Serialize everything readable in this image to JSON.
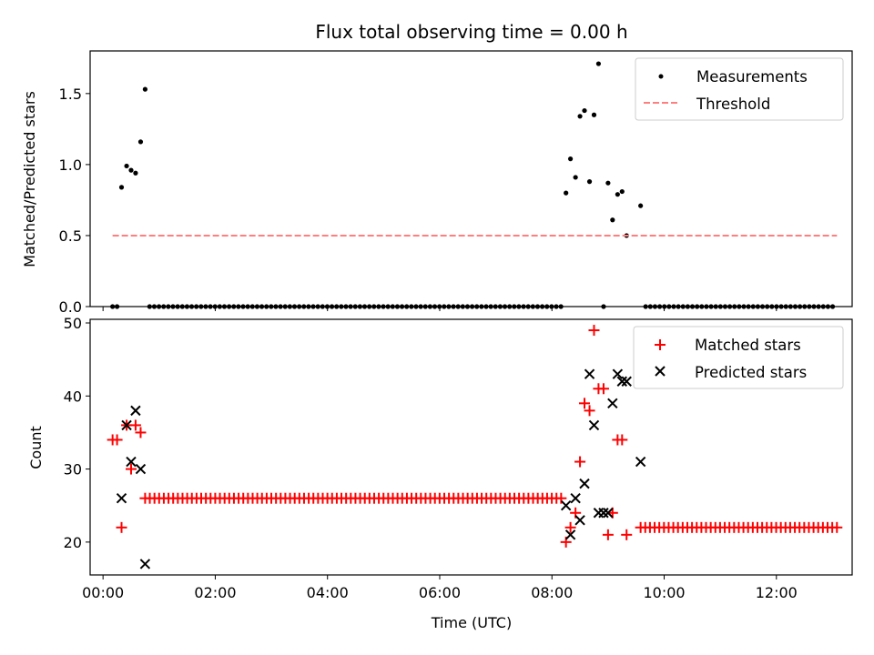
{
  "chart_data": [
    {
      "type": "scatter",
      "title": "Flux total observing time = 0.00 h",
      "xlabel": "",
      "ylabel": "Matched/Predicted stars",
      "xlim": [
        -0.23,
        13.35
      ],
      "ylim": [
        0.0,
        1.8
      ],
      "yticks": [
        0.0,
        0.5,
        1.0,
        1.5
      ],
      "ytick_labels": [
        "0.0",
        "0.5",
        "1.0",
        "1.5"
      ],
      "xticks": [
        0,
        2,
        4,
        6,
        8,
        10,
        12
      ],
      "legend": {
        "position": "top-right",
        "entries": [
          "Measurements",
          "Threshold"
        ]
      },
      "series": [
        {
          "name": "Measurements",
          "marker": "dot",
          "color": "#000000",
          "x": [
            0.17,
            0.25,
            0.33,
            0.42,
            0.5,
            0.58,
            0.67,
            0.75,
            8.25,
            8.33,
            8.42,
            8.5,
            8.58,
            8.67,
            8.75,
            8.83,
            8.92,
            9.0,
            9.08,
            9.17,
            9.25,
            9.33,
            9.58
          ],
          "y": [
            0.0,
            0.0,
            0.84,
            0.99,
            0.96,
            0.94,
            1.16,
            1.53,
            0.8,
            1.04,
            0.91,
            1.34,
            1.38,
            0.88,
            1.35,
            1.71,
            0.0,
            0.87,
            0.61,
            0.79,
            0.81,
            0.5,
            0.71
          ],
          "zero_range_x": [
            [
              0.83,
              8.17
            ],
            [
              9.67,
              13.08
            ]
          ],
          "zero_step": 0.0833
        },
        {
          "name": "Threshold",
          "style": "dashed",
          "color": "#ff7f7f",
          "x": [
            0.17,
            13.08
          ],
          "y": [
            0.5,
            0.5
          ]
        }
      ]
    },
    {
      "type": "scatter",
      "title": "",
      "xlabel": "Time (UTC)",
      "ylabel": "Count",
      "xlim": [
        -0.23,
        13.35
      ],
      "ylim": [
        15.5,
        50.5
      ],
      "yticks": [
        20,
        30,
        40,
        50
      ],
      "ytick_labels": [
        "20",
        "30",
        "40",
        "50"
      ],
      "xticks": [
        0,
        2,
        4,
        6,
        8,
        10,
        12
      ],
      "xtick_labels": [
        "00:00",
        "02:00",
        "04:00",
        "06:00",
        "08:00",
        "10:00",
        "12:00"
      ],
      "legend": {
        "position": "top-right",
        "entries": [
          "Matched stars",
          "Predicted stars"
        ]
      },
      "series": [
        {
          "name": "Matched stars",
          "marker": "plus",
          "color": "#ff0000",
          "x": [
            0.17,
            0.25,
            0.33,
            0.42,
            0.5,
            0.58,
            0.67,
            8.25,
            8.33,
            8.42,
            8.5,
            8.58,
            8.67,
            8.75,
            8.83,
            8.92,
            9.0,
            9.08,
            9.17,
            9.25,
            9.33
          ],
          "y": [
            34,
            34,
            22,
            36,
            30,
            36,
            35,
            20,
            22,
            24,
            31,
            39,
            38,
            49,
            41,
            41,
            21,
            24,
            34,
            34,
            21
          ],
          "const_ranges": [
            {
              "from": 0.75,
              "to": 8.17,
              "y": 26
            },
            {
              "from": 9.58,
              "to": 13.08,
              "y": 22
            }
          ],
          "step": 0.0833
        },
        {
          "name": "Predicted stars",
          "marker": "x",
          "color": "#000000",
          "x": [
            0.33,
            0.42,
            0.5,
            0.58,
            0.67,
            0.75,
            8.25,
            8.33,
            8.42,
            8.5,
            8.58,
            8.67,
            8.75,
            8.83,
            8.92,
            9.0,
            9.08,
            9.17,
            9.25,
            9.33,
            9.58
          ],
          "y": [
            26,
            36,
            31,
            38,
            30,
            17,
            25,
            21,
            26,
            23,
            28,
            43,
            36,
            24,
            24,
            24,
            39,
            43,
            42,
            42,
            31
          ]
        }
      ]
    }
  ]
}
